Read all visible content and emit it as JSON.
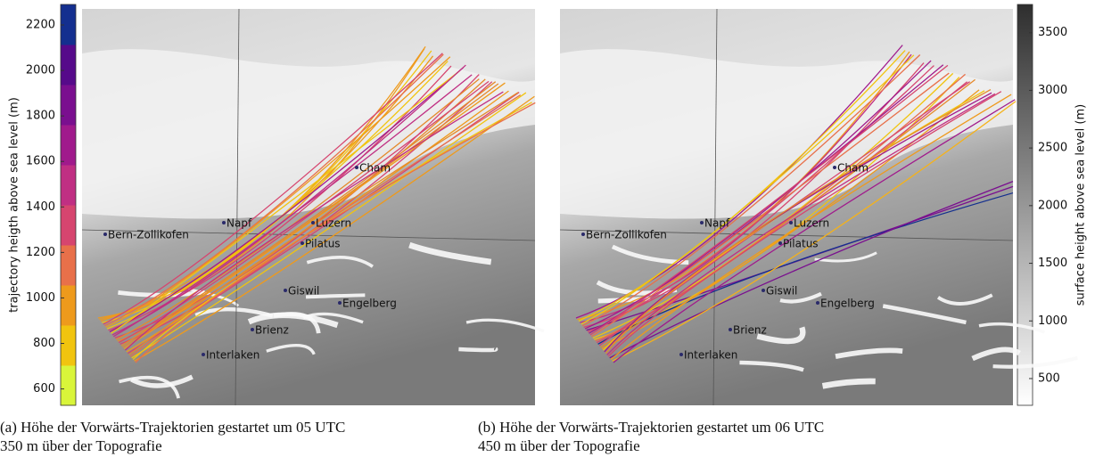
{
  "left_colorbar": {
    "label": "trajectory heigth above sea level (m)",
    "ticks": [
      600,
      800,
      1000,
      1200,
      1400,
      1600,
      1800,
      2000,
      2200
    ]
  },
  "right_colorbar": {
    "label": "surface height above sea level (m)",
    "ticks": [
      500,
      1000,
      1500,
      2000,
      2500,
      3000,
      3500
    ]
  },
  "panels": [
    {
      "stations": [
        "Bern-Zollikofen",
        "Napf",
        "Luzern",
        "Cham",
        "Pilatus",
        "Giswil",
        "Engelberg",
        "Brienz",
        "Interlaken"
      ],
      "caption": [
        "(a) Höhe der Vorwärts-Trajektorien gestartet um 05 UTC",
        "350 m über der Topografie"
      ]
    },
    {
      "stations": [
        "Bern-Zollikofen",
        "Napf",
        "Luzern",
        "Cham",
        "Pilatus",
        "Giswil",
        "Engelberg",
        "Brienz",
        "Interlaken"
      ],
      "caption": [
        "(b) Höhe der Vorwärts-Trajektorien gestartet um 06 UTC",
        "450 m über der Topografie"
      ]
    }
  ]
}
